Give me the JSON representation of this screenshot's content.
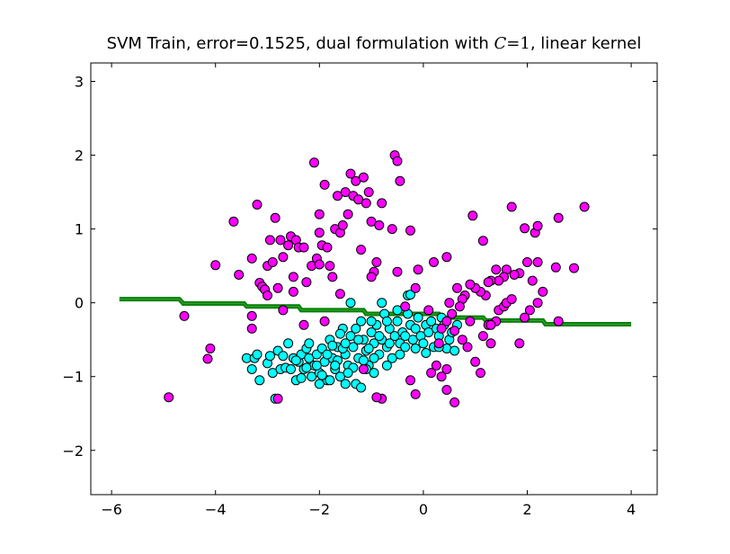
{
  "chart_data": {
    "type": "scatter",
    "title": "SVM Train, error=0.1525, dual formulation with C=1, linear kernel",
    "title_parts": {
      "prefix": "SVM Train, error=0.1525, dual formulation with ",
      "math_var": "C",
      "math_rest": "=1",
      "suffix": ", linear kernel"
    },
    "xlabel": "",
    "ylabel": "",
    "xlim": [
      -6.4,
      4.5
    ],
    "ylim": [
      -2.6,
      3.25
    ],
    "xticks": [
      -6,
      -4,
      -2,
      0,
      2,
      4
    ],
    "yticks": [
      -2,
      -1,
      0,
      1,
      2,
      3
    ],
    "xtick_labels": [
      "−6",
      "−4",
      "−2",
      "0",
      "2",
      "4"
    ],
    "ytick_labels": [
      "−2",
      "−1",
      "0",
      "1",
      "2",
      "3"
    ],
    "grid": false,
    "legend": "none",
    "colors": {
      "class_positive": "#ff00ff",
      "class_negative": "#00ffff",
      "marker_edge": "#000000",
      "boundary": "#007f00"
    },
    "series": [
      {
        "values_label": "magenta",
        "color": "#ff00ff",
        "points": [
          [
            -4.9,
            -1.28
          ],
          [
            -4.6,
            -0.18
          ],
          [
            -4.1,
            -0.62
          ],
          [
            -4.15,
            -0.76
          ],
          [
            -4.0,
            0.51
          ],
          [
            -3.65,
            1.1
          ],
          [
            -3.55,
            0.38
          ],
          [
            -3.3,
            0.6
          ],
          [
            -3.3,
            -0.35
          ],
          [
            -3.3,
            -0.18
          ],
          [
            -3.2,
            1.33
          ],
          [
            -3.15,
            0.27
          ],
          [
            -3.1,
            0.22
          ],
          [
            -3.05,
            0.18
          ],
          [
            -3.0,
            0.5
          ],
          [
            -3.0,
            0.1
          ],
          [
            -2.95,
            0.85
          ],
          [
            -2.9,
            0.55
          ],
          [
            -2.85,
            1.15
          ],
          [
            -2.8,
            0.2
          ],
          [
            -2.75,
            0.85
          ],
          [
            -2.7,
            0.62
          ],
          [
            -2.6,
            0.78
          ],
          [
            -2.55,
            0.9
          ],
          [
            -2.5,
            0.35
          ],
          [
            -2.5,
            0.15
          ],
          [
            -2.45,
            0.85
          ],
          [
            -2.4,
            0.75
          ],
          [
            -2.3,
            0.75
          ],
          [
            -2.25,
            0.28
          ],
          [
            -2.15,
            0.5
          ],
          [
            -2.1,
            1.9
          ],
          [
            -2.05,
            0.6
          ],
          [
            -2.0,
            0.95
          ],
          [
            -2.0,
            0.52
          ],
          [
            -2.0,
            1.2
          ],
          [
            -1.95,
            0.78
          ],
          [
            -1.9,
            1.6
          ],
          [
            -1.85,
            0.75
          ],
          [
            -1.8,
            0.5
          ],
          [
            -1.75,
            0.35
          ],
          [
            -1.7,
            1.0
          ],
          [
            -1.65,
            1.45
          ],
          [
            -1.6,
            0.95
          ],
          [
            -1.55,
            1.05
          ],
          [
            -1.5,
            1.5
          ],
          [
            -1.45,
            1.2
          ],
          [
            -1.4,
            1.75
          ],
          [
            -1.35,
            1.45
          ],
          [
            -1.3,
            1.65
          ],
          [
            -1.25,
            1.4
          ],
          [
            -1.2,
            0.72
          ],
          [
            -1.15,
            1.7
          ],
          [
            -1.1,
            1.35
          ],
          [
            -1.05,
            1.5
          ],
          [
            -1.0,
            1.1
          ],
          [
            -0.95,
            0.42
          ],
          [
            -0.9,
            0.55
          ],
          [
            -0.85,
            1.05
          ],
          [
            -0.8,
            1.35
          ],
          [
            -0.6,
            1.0
          ],
          [
            -0.5,
            0.42
          ],
          [
            -0.55,
            2.0
          ],
          [
            -0.5,
            1.92
          ],
          [
            -0.45,
            1.65
          ],
          [
            -0.25,
            0.98
          ],
          [
            -0.1,
            0.45
          ],
          [
            0.2,
            0.55
          ],
          [
            0.45,
            0.62
          ],
          [
            0.95,
            1.18
          ],
          [
            1.15,
            0.84
          ],
          [
            1.7,
            1.3
          ],
          [
            1.95,
            1.01
          ],
          [
            2.15,
            0.95
          ],
          [
            2.2,
            1.04
          ],
          [
            2.6,
            1.15
          ],
          [
            3.1,
            1.3
          ],
          [
            2.9,
            0.47
          ],
          [
            2.55,
            0.48
          ],
          [
            2.2,
            0.55
          ],
          [
            2.1,
            0.3
          ],
          [
            2.0,
            0.55
          ],
          [
            1.85,
            0.4
          ],
          [
            1.75,
            0.38
          ],
          [
            1.6,
            0.45
          ],
          [
            1.55,
            0.35
          ],
          [
            1.45,
            0.3
          ],
          [
            1.4,
            0.45
          ],
          [
            1.3,
            0.3
          ],
          [
            1.25,
            0.28
          ],
          [
            1.2,
            0.1
          ],
          [
            1.1,
            0.15
          ],
          [
            1.0,
            0.2
          ],
          [
            0.9,
            0.25
          ],
          [
            0.8,
            0.1
          ],
          [
            0.75,
            0.05
          ],
          [
            0.7,
            -0.05
          ],
          [
            0.65,
            0.2
          ],
          [
            0.55,
            -0.15
          ],
          [
            0.45,
            -0.25
          ],
          [
            0.35,
            -0.35
          ],
          [
            0.3,
            -0.55
          ],
          [
            0.25,
            -0.85
          ],
          [
            0.15,
            -0.95
          ],
          [
            0.45,
            -0.9
          ],
          [
            0.45,
            -1.18
          ],
          [
            0.35,
            -1.0
          ],
          [
            0.6,
            -1.35
          ],
          [
            0.6,
            -0.38
          ],
          [
            0.75,
            -0.5
          ],
          [
            0.85,
            -0.6
          ],
          [
            1.0,
            -0.8
          ],
          [
            1.1,
            -0.95
          ],
          [
            1.15,
            -0.45
          ],
          [
            1.25,
            -0.3
          ],
          [
            1.3,
            -0.55
          ],
          [
            1.4,
            -0.25
          ],
          [
            1.45,
            -0.1
          ],
          [
            1.55,
            -0.05
          ],
          [
            1.6,
            0.0
          ],
          [
            1.7,
            0.05
          ],
          [
            1.85,
            -0.55
          ],
          [
            1.95,
            -0.2
          ],
          [
            2.05,
            -0.1
          ],
          [
            2.2,
            0.0
          ],
          [
            2.3,
            0.15
          ],
          [
            2.6,
            -0.25
          ],
          [
            -0.25,
            -1.05
          ],
          [
            -0.15,
            -1.24
          ],
          [
            -0.8,
            -1.3
          ],
          [
            -0.9,
            -1.28
          ],
          [
            -1.15,
            -0.9
          ],
          [
            -2.8,
            -1.3
          ],
          [
            -1.9,
            -0.25
          ],
          [
            -2.3,
            -0.3
          ],
          [
            -2.7,
            -0.1
          ],
          [
            -1.6,
            0.12
          ],
          [
            -1.0,
            0.35
          ],
          [
            -0.15,
            0.2
          ],
          [
            0.1,
            -0.1
          ],
          [
            0.9,
            -0.25
          ],
          [
            1.3,
            -0.3
          ],
          [
            0.5,
            0.0
          ],
          [
            -0.35,
            -0.05
          ]
        ]
      },
      {
        "values_label": "cyan",
        "color": "#00ffff",
        "points": [
          [
            -3.4,
            -0.75
          ],
          [
            -3.3,
            -0.9
          ],
          [
            -3.25,
            -0.75
          ],
          [
            -3.2,
            -0.7
          ],
          [
            -3.15,
            -1.05
          ],
          [
            -3.0,
            -0.82
          ],
          [
            -2.95,
            -0.72
          ],
          [
            -2.9,
            -0.95
          ],
          [
            -2.85,
            -1.3
          ],
          [
            -2.8,
            -0.65
          ],
          [
            -2.75,
            -0.9
          ],
          [
            -2.7,
            -0.72
          ],
          [
            -2.65,
            -0.88
          ],
          [
            -2.6,
            -0.55
          ],
          [
            -2.55,
            -0.9
          ],
          [
            -2.5,
            -0.75
          ],
          [
            -2.45,
            -1.05
          ],
          [
            -2.4,
            -0.8
          ],
          [
            -2.35,
            -0.7
          ],
          [
            -2.3,
            -0.9
          ],
          [
            -2.25,
            -0.62
          ],
          [
            -2.2,
            -0.75
          ],
          [
            -2.15,
            -1.0
          ],
          [
            -2.1,
            -0.85
          ],
          [
            -2.05,
            -0.7
          ],
          [
            -2.0,
            -0.95
          ],
          [
            -1.95,
            -0.62
          ],
          [
            -1.9,
            -0.8
          ],
          [
            -1.85,
            -1.05
          ],
          [
            -1.8,
            -0.5
          ],
          [
            -1.75,
            -0.75
          ],
          [
            -1.7,
            -0.9
          ],
          [
            -1.65,
            -0.6
          ],
          [
            -1.6,
            -1.0
          ],
          [
            -1.55,
            -0.35
          ],
          [
            -1.5,
            -0.7
          ],
          [
            -1.45,
            -0.85
          ],
          [
            -1.4,
            -0.45
          ],
          [
            -1.35,
            -0.6
          ],
          [
            -1.3,
            -1.1
          ],
          [
            -1.25,
            -0.75
          ],
          [
            -1.2,
            -0.25
          ],
          [
            -1.15,
            -0.5
          ],
          [
            -1.1,
            -0.65
          ],
          [
            -1.05,
            -0.85
          ],
          [
            -1.0,
            -0.4
          ],
          [
            -0.95,
            -0.55
          ],
          [
            -0.9,
            -0.3
          ],
          [
            -0.85,
            -0.7
          ],
          [
            -0.8,
            -0.5
          ],
          [
            -0.75,
            -0.15
          ],
          [
            -0.7,
            -0.6
          ],
          [
            -0.65,
            -0.35
          ],
          [
            -0.6,
            -0.75
          ],
          [
            -0.55,
            -0.45
          ],
          [
            -0.5,
            -0.25
          ],
          [
            -0.45,
            -0.55
          ],
          [
            -0.4,
            -0.4
          ],
          [
            -0.35,
            -0.6
          ],
          [
            -0.3,
            0.1
          ],
          [
            -0.25,
            -0.3
          ],
          [
            -0.2,
            -0.5
          ],
          [
            -0.15,
            -0.35
          ],
          [
            -0.1,
            -0.2
          ],
          [
            -0.05,
            -0.45
          ],
          [
            0.0,
            -0.55
          ],
          [
            0.05,
            -0.3
          ],
          [
            0.1,
            -0.4
          ],
          [
            0.15,
            -0.25
          ],
          [
            0.2,
            -0.6
          ],
          [
            0.25,
            -0.35
          ],
          [
            0.3,
            -0.45
          ],
          [
            0.35,
            -0.2
          ],
          [
            0.4,
            -0.3
          ],
          [
            0.45,
            -0.62
          ],
          [
            0.5,
            -0.5
          ],
          [
            0.55,
            -0.4
          ],
          [
            0.6,
            -0.65
          ],
          [
            0.65,
            -0.3
          ],
          [
            -0.25,
            0.11
          ],
          [
            -0.3,
            -0.15
          ],
          [
            -0.5,
            -0.1
          ],
          [
            -0.8,
            0.0
          ],
          [
            -1.4,
            0.0
          ],
          [
            -2.0,
            -1.1
          ],
          [
            -1.8,
            -1.05
          ],
          [
            -1.5,
            -1.1
          ],
          [
            -1.2,
            -1.15
          ],
          [
            -0.95,
            -0.95
          ],
          [
            -2.45,
            -0.78
          ],
          [
            -2.2,
            -0.55
          ],
          [
            -1.75,
            -0.58
          ],
          [
            -1.55,
            -0.62
          ],
          [
            -1.35,
            -0.88
          ],
          [
            -1.15,
            -0.78
          ],
          [
            -0.95,
            -0.75
          ],
          [
            -0.7,
            -0.85
          ],
          [
            -0.45,
            -0.7
          ],
          [
            -2.05,
            -0.85
          ],
          [
            -1.95,
            -0.98
          ],
          [
            -1.65,
            -0.78
          ],
          [
            -1.45,
            -0.95
          ],
          [
            -1.25,
            -0.5
          ],
          [
            -1.05,
            -0.62
          ],
          [
            -0.85,
            -0.45
          ],
          [
            -0.65,
            -0.55
          ],
          [
            -0.35,
            -0.45
          ],
          [
            -0.15,
            -0.62
          ],
          [
            0.05,
            -0.68
          ],
          [
            0.3,
            -0.6
          ],
          [
            -1.6,
            -0.42
          ],
          [
            -1.3,
            -0.35
          ],
          [
            -1.0,
            -0.25
          ],
          [
            -0.7,
            -0.25
          ],
          [
            -2.25,
            -0.88
          ],
          [
            -2.35,
            -1.02
          ],
          [
            -1.85,
            -0.7
          ],
          [
            -1.7,
            -0.85
          ],
          [
            -1.5,
            -0.55
          ],
          [
            -1.1,
            -0.9
          ]
        ]
      }
    ],
    "decision_boundary": {
      "label": "",
      "x": [
        -5.85,
        -4.7,
        -4.62,
        -3.45,
        -3.4,
        -2.4,
        -2.35,
        -1.15,
        -1.1,
        0.3,
        0.35,
        1.15,
        1.2,
        2.3,
        2.35,
        4.0
      ],
      "y": [
        0.05,
        0.05,
        -0.01,
        -0.01,
        -0.05,
        -0.05,
        -0.1,
        -0.1,
        -0.15,
        -0.15,
        -0.2,
        -0.2,
        -0.24,
        -0.24,
        -0.29,
        -0.29
      ]
    }
  }
}
